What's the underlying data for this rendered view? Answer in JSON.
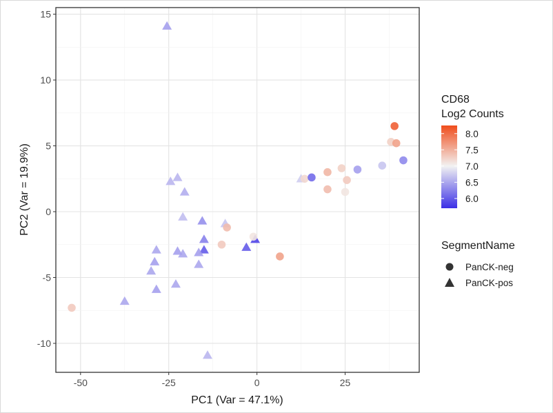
{
  "chart_data": {
    "type": "scatter",
    "xlabel": "PC1 (Var = 47.1%)",
    "ylabel": "PC2 (Var = 19.9%)",
    "xlim": [
      -57,
      46
    ],
    "ylim": [
      -12.2,
      15.5
    ],
    "x_ticks": [
      -50,
      -25,
      0,
      25
    ],
    "y_ticks": [
      -10,
      -5,
      0,
      5,
      10,
      15
    ],
    "grid": true,
    "colorbar": {
      "title_line1": "CD68",
      "title_line2": "Log2 Counts",
      "ticks": [
        "8.0",
        "7.5",
        "7.0",
        "6.5",
        "6.0"
      ],
      "tick_values": [
        8.0,
        7.5,
        7.0,
        6.5,
        6.0
      ],
      "range": [
        5.7,
        8.25
      ],
      "low_color": "#3b2fe6",
      "mid_color": "#f2f2f2",
      "high_color": "#f04d1c",
      "mid_value": 7.0
    },
    "shape_legend": {
      "title": "SegmentName",
      "items": [
        {
          "label": "PanCK-neg",
          "shape": "circle"
        },
        {
          "label": "PanCK-pos",
          "shape": "triangle"
        }
      ]
    },
    "points": [
      {
        "x": -25.5,
        "y": 14.1,
        "shape": "triangle",
        "c": 6.45
      },
      {
        "x": -24.5,
        "y": 2.3,
        "shape": "triangle",
        "c": 6.6
      },
      {
        "x": -22.5,
        "y": 2.6,
        "shape": "triangle",
        "c": 6.6
      },
      {
        "x": -20.5,
        "y": 1.5,
        "shape": "triangle",
        "c": 6.55
      },
      {
        "x": -21,
        "y": -0.4,
        "shape": "triangle",
        "c": 6.65
      },
      {
        "x": -15.5,
        "y": -0.7,
        "shape": "triangle",
        "c": 6.35
      },
      {
        "x": -15,
        "y": -2.1,
        "shape": "triangle",
        "c": 6.25
      },
      {
        "x": -15,
        "y": -2.9,
        "shape": "triangle",
        "c": 6.0
      },
      {
        "x": -16.5,
        "y": -3.1,
        "shape": "triangle",
        "c": 6.45
      },
      {
        "x": -16.5,
        "y": -4.0,
        "shape": "triangle",
        "c": 6.5
      },
      {
        "x": -21,
        "y": -3.2,
        "shape": "triangle",
        "c": 6.5
      },
      {
        "x": -22.5,
        "y": -3.0,
        "shape": "triangle",
        "c": 6.45
      },
      {
        "x": -28.5,
        "y": -2.9,
        "shape": "triangle",
        "c": 6.5
      },
      {
        "x": -29,
        "y": -3.8,
        "shape": "triangle",
        "c": 6.45
      },
      {
        "x": -30,
        "y": -4.5,
        "shape": "triangle",
        "c": 6.5
      },
      {
        "x": -28.5,
        "y": -5.9,
        "shape": "triangle",
        "c": 6.45
      },
      {
        "x": -23,
        "y": -5.5,
        "shape": "triangle",
        "c": 6.5
      },
      {
        "x": -37.5,
        "y": -6.8,
        "shape": "triangle",
        "c": 6.5
      },
      {
        "x": -14,
        "y": -10.9,
        "shape": "triangle",
        "c": 6.6
      },
      {
        "x": -9,
        "y": -0.9,
        "shape": "triangle",
        "c": 6.7
      },
      {
        "x": -3,
        "y": -2.7,
        "shape": "triangle",
        "c": 6.0
      },
      {
        "x": -0.5,
        "y": -2.1,
        "shape": "triangle",
        "c": 5.85
      },
      {
        "x": 12.5,
        "y": 2.5,
        "shape": "triangle",
        "c": 6.75
      },
      {
        "x": -52.5,
        "y": -7.3,
        "shape": "circle",
        "c": 7.3
      },
      {
        "x": -8.5,
        "y": -1.2,
        "shape": "circle",
        "c": 7.4
      },
      {
        "x": -10,
        "y": -2.5,
        "shape": "circle",
        "c": 7.3
      },
      {
        "x": -1,
        "y": -1.9,
        "shape": "circle",
        "c": 7.1
      },
      {
        "x": 6.5,
        "y": -3.4,
        "shape": "circle",
        "c": 7.6
      },
      {
        "x": 13.5,
        "y": 2.5,
        "shape": "circle",
        "c": 7.2
      },
      {
        "x": 15.5,
        "y": 2.6,
        "shape": "circle",
        "c": 6.1
      },
      {
        "x": 20,
        "y": 3.0,
        "shape": "circle",
        "c": 7.45
      },
      {
        "x": 20,
        "y": 1.7,
        "shape": "circle",
        "c": 7.4
      },
      {
        "x": 24,
        "y": 3.3,
        "shape": "circle",
        "c": 7.25
      },
      {
        "x": 25.5,
        "y": 2.4,
        "shape": "circle",
        "c": 7.3
      },
      {
        "x": 25,
        "y": 1.5,
        "shape": "circle",
        "c": 7.1
      },
      {
        "x": 28.5,
        "y": 3.2,
        "shape": "circle",
        "c": 6.45
      },
      {
        "x": 35.5,
        "y": 3.5,
        "shape": "circle",
        "c": 6.7
      },
      {
        "x": 38,
        "y": 5.3,
        "shape": "circle",
        "c": 7.25
      },
      {
        "x": 39.5,
        "y": 5.2,
        "shape": "circle",
        "c": 7.6
      },
      {
        "x": 39,
        "y": 6.5,
        "shape": "circle",
        "c": 8.1
      },
      {
        "x": 41.5,
        "y": 3.9,
        "shape": "circle",
        "c": 6.3
      }
    ]
  }
}
